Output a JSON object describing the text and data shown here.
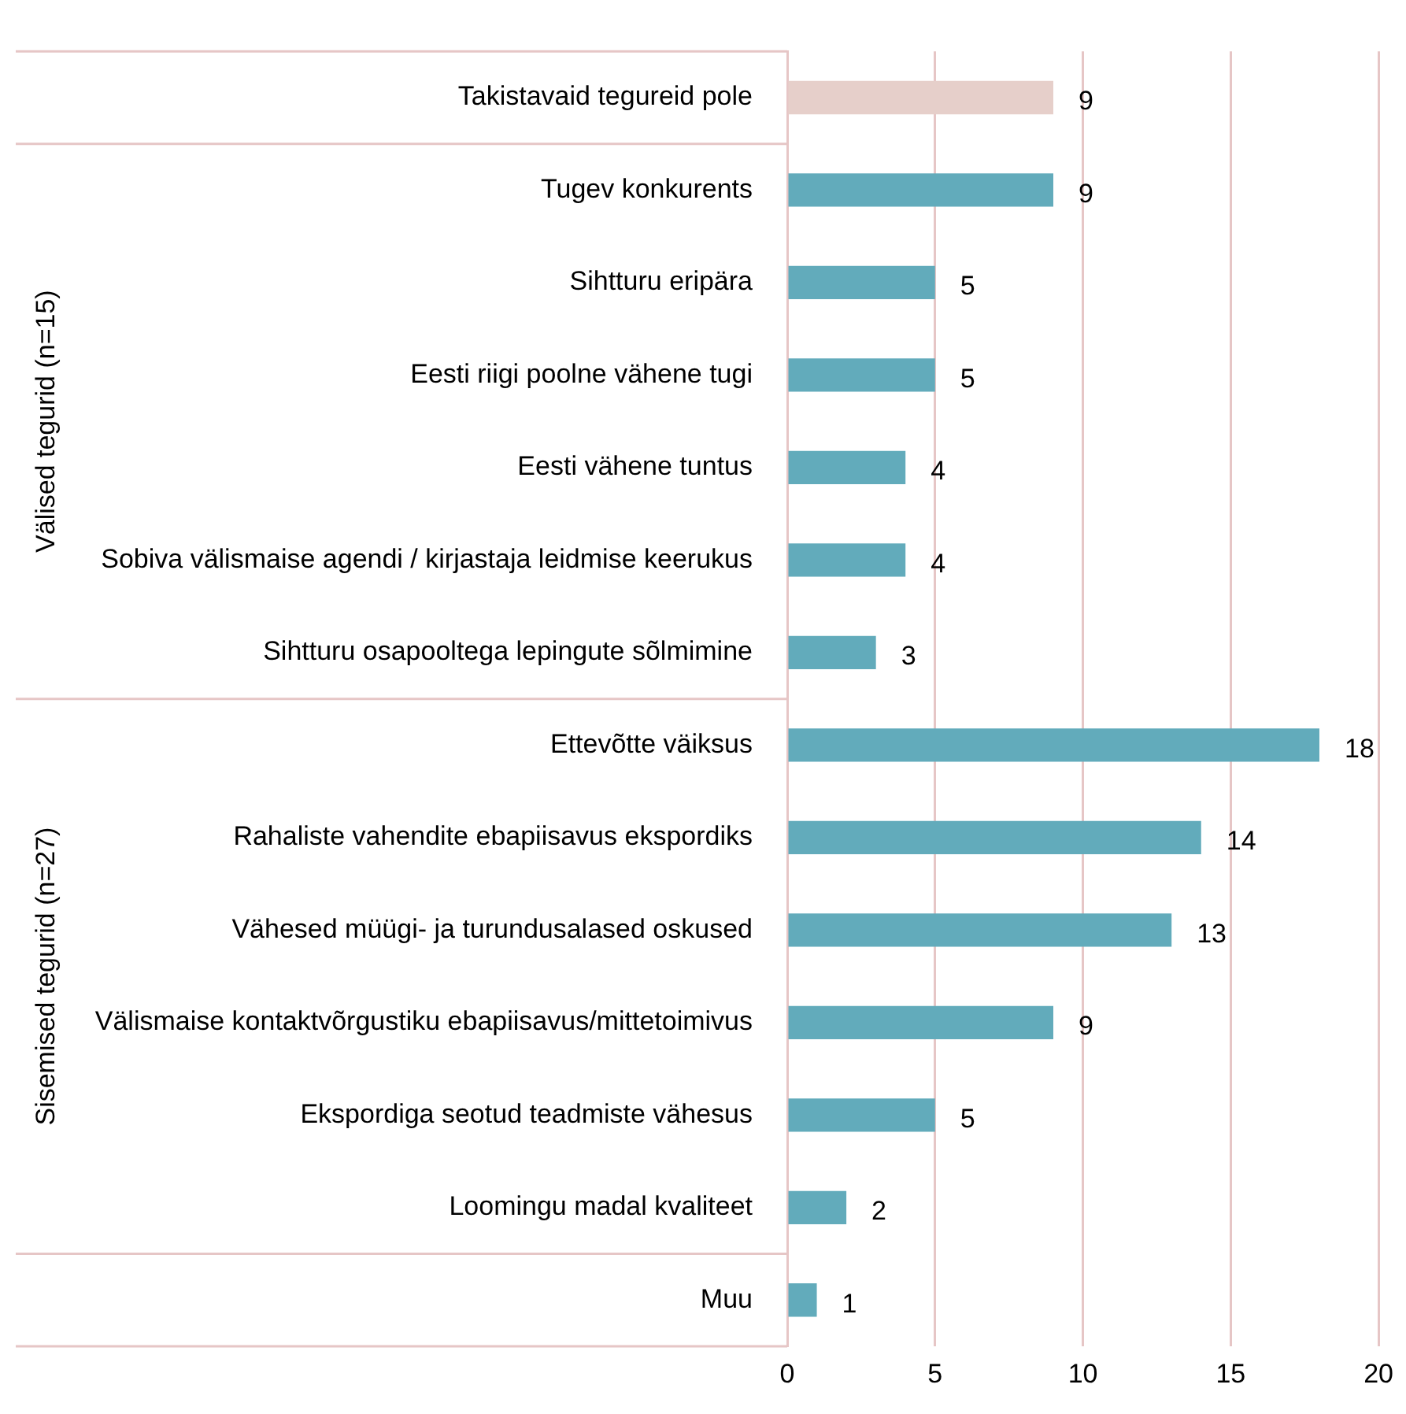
{
  "chart_data": {
    "type": "bar",
    "orientation": "horizontal",
    "categories": [
      "Takistavaid tegureid pole",
      "Tugev konkurents",
      "Sihtturu eripära",
      "Eesti riigi poolne vähene tugi",
      "Eesti vähene tuntus",
      "Sobiva välismaise agendi / kirjastaja leidmise keerukus",
      "Sihtturu osapooltega lepingute sõlmimine",
      "Ettevõtte väiksus",
      "Rahaliste vahendite ebapiisavus ekspordiks",
      "Vähesed müügi- ja turundusalased oskused",
      "Välismaise kontaktvõrgustiku ebapiisavus/mittetoimivus",
      "Ekspordiga seotud teadmiste vähesus",
      "Loomingu madal kvaliteet",
      "Muu"
    ],
    "values": [
      9,
      9,
      5,
      5,
      4,
      4,
      3,
      18,
      14,
      13,
      9,
      5,
      2,
      1
    ],
    "colors": [
      "#e6cfca",
      "#62abbb",
      "#62abbb",
      "#62abbb",
      "#62abbb",
      "#62abbb",
      "#62abbb",
      "#62abbb",
      "#62abbb",
      "#62abbb",
      "#62abbb",
      "#62abbb",
      "#62abbb",
      "#62abbb"
    ],
    "xlim": [
      0,
      20
    ],
    "xticks": [
      0,
      5,
      10,
      15,
      20
    ],
    "grid": "x",
    "data_labels": true,
    "annotations": [
      "Välised tegurid (n=15)",
      "Sisemised tegurid (n=27)"
    ]
  }
}
